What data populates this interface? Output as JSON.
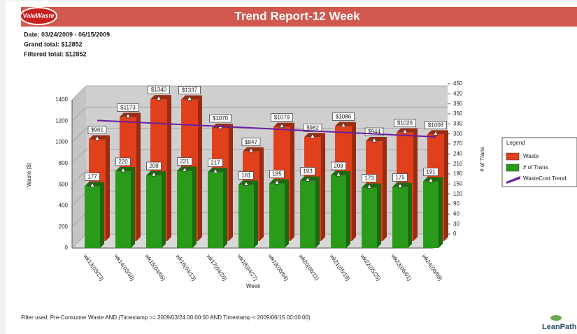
{
  "header": {
    "logo": "ValuWaste",
    "title": "Trend Report-12 Week",
    "date": "Date: 03/24/2009 - 06/15/2009",
    "grand_total": "Grand total: $12852",
    "filtered_total": "Filtered total: $12852"
  },
  "chart_data": {
    "type": "bar",
    "x_label": "Week",
    "y_label": "Waste ($)",
    "y2_label": "# of Trans",
    "categories": [
      "wk13(03/23)",
      "wk14(03/30)",
      "wk15(04/06)",
      "wk16(04/13)",
      "wk17(04/20)",
      "wk18(04/27)",
      "wk19(05/04)",
      "wk20(05/11)",
      "wk21(05/18)",
      "wk22(05/25)",
      "wk23(06/01)",
      "wk24(06/08)"
    ],
    "series": [
      {
        "name": "Waste",
        "color": "#e0401c",
        "values": [
          961,
          1173,
          1340,
          1337,
          1070,
          847,
          1079,
          982,
          1086,
          944,
          1026,
          1008
        ],
        "value_labels": [
          "$961",
          "$1173",
          "$1340",
          "$1337",
          "$1070",
          "$847",
          "$1079",
          "$982",
          "$1086",
          "$944",
          "$1026",
          "$1008"
        ]
      },
      {
        "name": "# of Trans",
        "color": "#2a9a1a",
        "axis": "y2",
        "values": [
          177,
          220,
          208,
          221,
          217,
          181,
          185,
          193,
          208,
          173,
          175,
          191
        ]
      },
      {
        "name": "WasteCost Trend",
        "color": "#6a1fa0",
        "type": "line",
        "values": [
          1140,
          1126,
          1112,
          1098,
          1084,
          1070,
          1055,
          1041,
          1027,
          1013,
          999,
          985
        ]
      }
    ],
    "ylim": [
      0,
      1400
    ],
    "yticks": [
      0,
      200,
      400,
      600,
      800,
      1000,
      1200,
      1400
    ],
    "y2lim": [
      0,
      450
    ],
    "y2ticks": [
      0,
      30,
      60,
      90,
      120,
      150,
      180,
      210,
      240,
      270,
      300,
      330,
      360,
      390,
      420,
      450
    ],
    "grid": true,
    "legend_title": "Legend",
    "legend": "right"
  },
  "footer": {
    "filter": "Filter used: Pre-Consumer Waste AND (Timestamp >= 2009/03/24 00:00:00 AND Timestamp < 2009/06/15 00:00:00)",
    "brand": "LeanPath"
  }
}
